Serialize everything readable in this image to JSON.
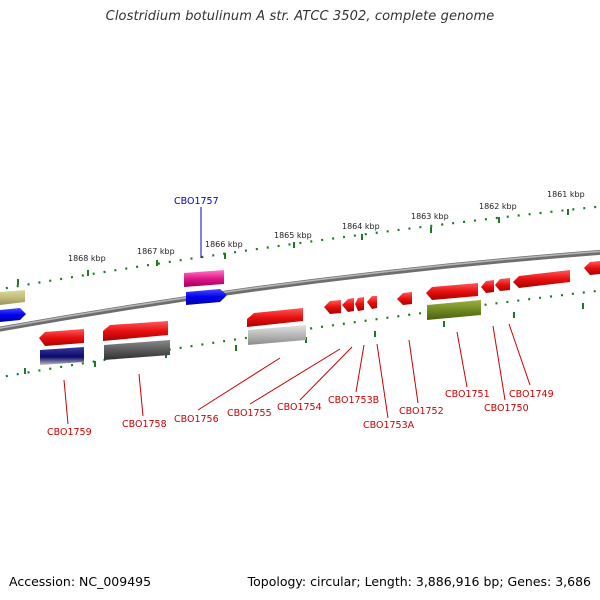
{
  "title": "Clostridium botulinum A str. ATCC 3502, complete genome",
  "footer": {
    "accession": "Accession: NC_009495",
    "summary": "Topology: circular; Length: 3,886,916 bp; Genes: 3,686"
  },
  "colors": {
    "backbone": "#8a8a8a",
    "tick": "#1e7a1e",
    "gene_red": "#e31010",
    "label_red": "#cc0000",
    "label_blue": "#0000cc"
  },
  "scale": {
    "unit": "kbp",
    "ticks": [
      {
        "text": "1861 kbp"
      },
      {
        "text": "1862 kbp"
      },
      {
        "text": "1863 kbp"
      },
      {
        "text": "1864 kbp"
      },
      {
        "text": "1865 kbp"
      },
      {
        "text": "1866 kbp"
      },
      {
        "text": "1867 kbp"
      },
      {
        "text": "1868 kbp"
      }
    ]
  },
  "genes": [
    {
      "text": "CBO1757",
      "color": "#0000cc"
    },
    {
      "text": "CBO1759",
      "color": "#cc0000"
    },
    {
      "text": "CBO1758",
      "color": "#cc0000"
    },
    {
      "text": "CBO1756",
      "color": "#cc0000"
    },
    {
      "text": "CBO1755",
      "color": "#cc0000"
    },
    {
      "text": "CBO1754",
      "color": "#cc0000"
    },
    {
      "text": "CBO1753B",
      "color": "#cc0000"
    },
    {
      "text": "CBO1753A",
      "color": "#cc0000"
    },
    {
      "text": "CBO1752",
      "color": "#cc0000"
    },
    {
      "text": "CBO1751",
      "color": "#cc0000"
    },
    {
      "text": "CBO1750",
      "color": "#cc0000"
    },
    {
      "text": "CBO1749",
      "color": "#cc0000"
    }
  ]
}
